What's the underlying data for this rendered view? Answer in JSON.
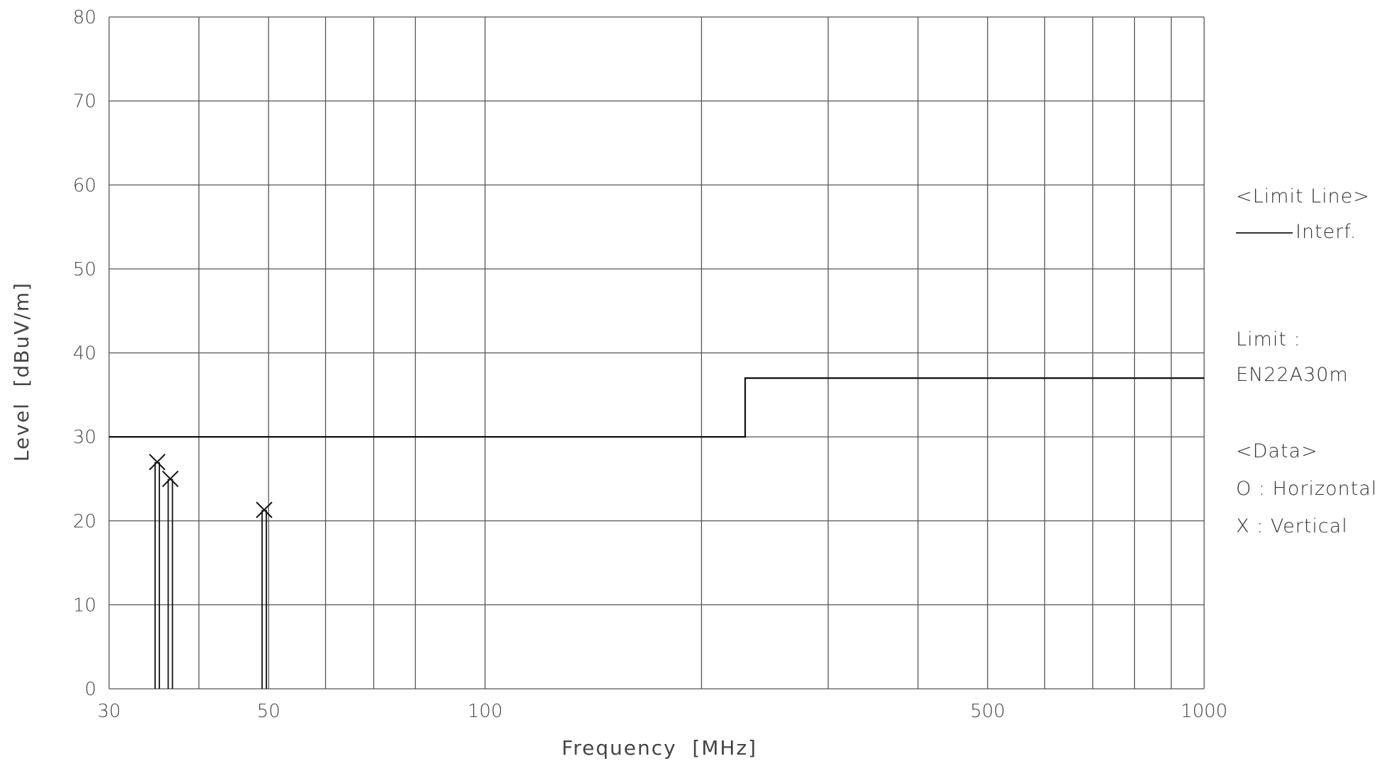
{
  "chart_data": {
    "type": "line",
    "xlabel": "Frequency  [MHz]",
    "ylabel": "Level  [dBuV/m]",
    "x_scale": "log",
    "xlim": [
      30,
      1000
    ],
    "ylim": [
      0,
      80
    ],
    "grid": true,
    "x_gridlines": [
      30,
      40,
      50,
      60,
      70,
      80,
      100,
      200,
      300,
      400,
      500,
      600,
      700,
      800,
      900,
      1000
    ],
    "x_ticks": [
      {
        "value": 30,
        "label": "30"
      },
      {
        "value": 50,
        "label": "50"
      },
      {
        "value": 100,
        "label": "100"
      },
      {
        "value": 500,
        "label": "500"
      },
      {
        "value": 1000,
        "label": "1000"
      }
    ],
    "y_ticks": [
      {
        "value": 0,
        "label": "0"
      },
      {
        "value": 10,
        "label": "10"
      },
      {
        "value": 20,
        "label": "20"
      },
      {
        "value": 30,
        "label": "30"
      },
      {
        "value": 40,
        "label": "40"
      },
      {
        "value": 50,
        "label": "50"
      },
      {
        "value": 60,
        "label": "60"
      },
      {
        "value": 70,
        "label": "70"
      },
      {
        "value": 80,
        "label": "80"
      }
    ],
    "limit_line": {
      "name": "Interf.",
      "points": [
        [
          30,
          30
        ],
        [
          230,
          30
        ],
        [
          230,
          37
        ],
        [
          1000,
          37
        ]
      ]
    },
    "data_vertical": [
      {
        "freq": 35.0,
        "level": 27.0
      },
      {
        "freq": 36.5,
        "level": 25.0
      },
      {
        "freq": 49.3,
        "level": 21.3
      }
    ]
  },
  "legend": {
    "limit_line_heading": "<Limit Line>",
    "limit_line_entry": "Interf.",
    "limit_label": "Limit :",
    "limit_name": "EN22A30m",
    "data_heading": "<Data>",
    "horizontal_entry": "O : Horizontal",
    "vertical_entry": "X : Vertical"
  },
  "colors": {
    "line": "#111111",
    "grid": "#555555"
  }
}
